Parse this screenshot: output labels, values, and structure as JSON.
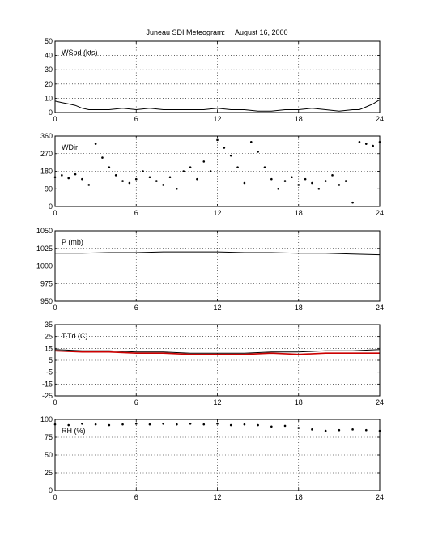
{
  "title": "Juneau SDI Meteogram:     August 16, 2000",
  "chart_data": [
    {
      "type": "line",
      "label": "WSpd (kts)",
      "xlim": [
        0,
        24
      ],
      "ylim": [
        0,
        50
      ],
      "xticks": [
        0,
        6,
        12,
        18,
        24
      ],
      "yticks": [
        0,
        10,
        20,
        30,
        40,
        50
      ],
      "grid": true,
      "series": [
        {
          "color": "#000000",
          "x": [
            0,
            0.5,
            1,
            1.5,
            2,
            2.5,
            3,
            4,
            5,
            6,
            7,
            8,
            9,
            10,
            11,
            12,
            13,
            14,
            15,
            16,
            17,
            18,
            19,
            20,
            21,
            22,
            22.5,
            23,
            23.5,
            24
          ],
          "y": [
            8,
            7,
            6,
            5,
            3,
            2,
            2,
            2,
            3,
            2,
            3,
            2,
            2,
            2,
            2,
            3,
            2,
            2,
            1,
            1,
            2,
            2,
            3,
            2,
            1,
            2,
            2,
            4,
            6,
            9
          ]
        }
      ]
    },
    {
      "type": "scatter",
      "label": "WDir",
      "xlim": [
        0,
        24
      ],
      "ylim": [
        0,
        360
      ],
      "xticks": [
        0,
        6,
        12,
        18,
        24
      ],
      "yticks": [
        0,
        90,
        180,
        270,
        360
      ],
      "grid": true,
      "series": [
        {
          "color": "#000000",
          "x": [
            0,
            0.5,
            1,
            1.5,
            2,
            2.5,
            3,
            3.5,
            4,
            4.5,
            5,
            5.5,
            6,
            6.5,
            7,
            7.5,
            8,
            8.5,
            9,
            9.5,
            10,
            10.5,
            11,
            11.5,
            12,
            12.5,
            13,
            13.5,
            14,
            14.5,
            15,
            15.5,
            16,
            16.5,
            17,
            17.5,
            18,
            18.5,
            19,
            19.5,
            20,
            20.5,
            21,
            21.5,
            22,
            22.5,
            23,
            23.5,
            24
          ],
          "y": [
            150,
            160,
            145,
            165,
            140,
            110,
            320,
            250,
            200,
            160,
            130,
            120,
            140,
            180,
            150,
            130,
            110,
            150,
            90,
            180,
            200,
            140,
            230,
            180,
            340,
            300,
            260,
            200,
            120,
            330,
            280,
            200,
            140,
            90,
            130,
            150,
            110,
            140,
            120,
            90,
            130,
            160,
            110,
            130,
            20,
            330,
            320,
            310,
            330
          ]
        }
      ]
    },
    {
      "type": "line",
      "label": "P (mb)",
      "xlim": [
        0,
        24
      ],
      "ylim": [
        950,
        1050
      ],
      "xticks": [
        0,
        6,
        12,
        18,
        24
      ],
      "yticks": [
        950,
        975,
        1000,
        1025,
        1050
      ],
      "grid": true,
      "series": [
        {
          "color": "#000000",
          "x": [
            0,
            2,
            4,
            6,
            8,
            10,
            12,
            14,
            16,
            18,
            20,
            22,
            24
          ],
          "y": [
            1018,
            1018,
            1019,
            1019,
            1020,
            1020,
            1020,
            1019,
            1019,
            1018,
            1018,
            1017,
            1016
          ]
        }
      ]
    },
    {
      "type": "line",
      "label": "T,Td (C)",
      "xlim": [
        0,
        24
      ],
      "ylim": [
        -25,
        35
      ],
      "xticks": [
        0,
        6,
        12,
        18,
        24
      ],
      "yticks": [
        -25,
        -15,
        -5,
        5,
        15,
        25,
        35
      ],
      "grid": true,
      "series": [
        {
          "color": "#000000",
          "x": [
            0,
            2,
            4,
            6,
            8,
            10,
            12,
            14,
            16,
            18,
            20,
            22,
            24
          ],
          "y": [
            14,
            13,
            13,
            12,
            12,
            11,
            11,
            11,
            12,
            12,
            13,
            13,
            14
          ]
        },
        {
          "color": "#cc0000",
          "x": [
            0,
            2,
            4,
            6,
            8,
            10,
            12,
            14,
            16,
            18,
            20,
            22,
            24
          ],
          "y": [
            13,
            12,
            12,
            11,
            11,
            10,
            10,
            10,
            11,
            10,
            11,
            11,
            11
          ]
        }
      ]
    },
    {
      "type": "scatter",
      "label": "RH (%)",
      "xlim": [
        0,
        24
      ],
      "ylim": [
        0,
        100
      ],
      "xticks": [
        0,
        6,
        12,
        18,
        24
      ],
      "yticks": [
        0,
        25,
        50,
        75,
        100
      ],
      "grid": true,
      "series": [
        {
          "color": "#000000",
          "x": [
            0,
            1,
            2,
            3,
            4,
            5,
            6,
            7,
            8,
            9,
            10,
            11,
            12,
            13,
            14,
            15,
            16,
            17,
            18,
            19,
            20,
            21,
            22,
            23,
            24
          ],
          "y": [
            93,
            92,
            94,
            93,
            92,
            93,
            94,
            93,
            94,
            93,
            94,
            93,
            94,
            92,
            93,
            92,
            90,
            91,
            88,
            86,
            84,
            85,
            86,
            85,
            84
          ]
        }
      ]
    }
  ]
}
